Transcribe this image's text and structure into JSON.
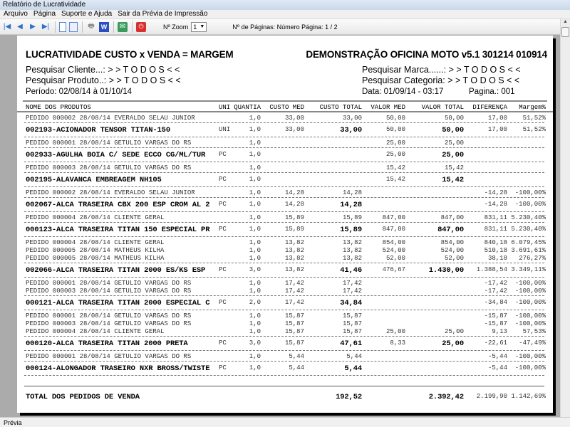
{
  "window": {
    "title": "Relatório de Lucratividade"
  },
  "menu": [
    "Arquivo",
    "Página",
    "Suporte e Ajuda",
    "Sair da Prévia de Impressão"
  ],
  "toolbar": {
    "icons": [
      "first-page-icon",
      "prev-page-icon",
      "next-page-icon",
      "last-page-icon",
      "single-page-icon",
      "two-pages-icon",
      "print-icon",
      "word-export-icon",
      "email-export-icon",
      "exit-icon"
    ],
    "zoom_label": "Nº Zoom",
    "zoom_value": "1",
    "pages_label": "Nº de Páginas: Número Página: 1 / 2"
  },
  "report": {
    "title": "LUCRATIVIDADE CUSTO x VENDA = MARGEM",
    "subtitle": "DEMONSTRAÇÃO OFICINA MOTO v5.1 301214 010914",
    "filter_cliente": "Pesquisar Cliente...: > >  T O D O S  < <",
    "filter_produto": "Pesquisar Produto..: > >  T O D O S  < <",
    "filter_marca": "Pesquisar Marca......: > >  T O D O S  < <",
    "filter_categoria": "Pesquisar Categoria: > >  T O D O S  < <",
    "periodo": "Período: 02/08/14 à 01/10/14",
    "data": "Data: 01/09/14 - 03:17",
    "pagina": "Pagina.: 001",
    "columns": [
      "NOME DOS PRODUTOS",
      "UNI",
      "QUANTIA",
      "CUSTO MED",
      "CUSTO TOTAL",
      "VALOR MED",
      "VALOR TOTAL",
      "DIFERENÇA",
      "Margem%"
    ],
    "groups": [
      {
        "orders": [
          [
            "PEDIDO 000002  28/08/14  EVERALDO SELAU JUNIOR",
            "",
            "1,0",
            "33,00",
            "33,00",
            "50,00",
            "50,00",
            "17,00",
            "51,52%"
          ]
        ],
        "product": [
          "002193-ACIONADOR TENSOR  TITAN-150",
          "UNI",
          "1,0",
          "33,00",
          "33,00",
          "50,00",
          "50,00",
          "17,00",
          "51,52%"
        ]
      },
      {
        "orders": [
          [
            "PEDIDO 000001  28/08/14  GETULIO VARGAS DO RS",
            "",
            "1,0",
            "",
            "",
            "25,00",
            "25,00",
            "",
            ""
          ]
        ],
        "product": [
          "002933-AGULHA BOIA C/ SEDE ECCO CG/ML/TUR",
          "PC",
          "1,0",
          "",
          "",
          "25,00",
          "25,00",
          "",
          ""
        ]
      },
      {
        "orders": [
          [
            "PEDIDO 000003  28/08/14  GETULIO VARGAS DO RS",
            "",
            "1,0",
            "",
            "",
            "15,42",
            "15,42",
            "",
            ""
          ]
        ],
        "product": [
          "002195-ALAVANCA EMBREAGEM NH105",
          "PC",
          "1,0",
          "",
          "",
          "15,42",
          "15,42",
          "",
          ""
        ]
      },
      {
        "orders": [
          [
            "PEDIDO 000002  28/08/14  EVERALDO SELAU JUNIOR",
            "",
            "1,0",
            "14,28",
            "14,28",
            "",
            "",
            "-14,28",
            "-100,00%"
          ]
        ],
        "product": [
          "002067-ALCA TRASEIRA CBX 200 ESP CROM AL 2",
          "PC",
          "1,0",
          "14,28",
          "14,28",
          "",
          "",
          "-14,28",
          "-100,00%"
        ]
      },
      {
        "orders": [
          [
            "PEDIDO 000004  28/08/14  CLIENTE GERAL",
            "",
            "1,0",
            "15,89",
            "15,89",
            "847,00",
            "847,00",
            "831,11",
            "5.230,40%"
          ]
        ],
        "product": [
          "000123-ALCA TRASEIRA TITAN 150 ESPECIAL PR",
          "PC",
          "1,0",
          "15,89",
          "15,89",
          "847,00",
          "847,00",
          "831,11",
          "5.230,40%"
        ]
      },
      {
        "orders": [
          [
            "PEDIDO 000004  28/08/14  CLIENTE GERAL",
            "",
            "1,0",
            "13,82",
            "13,82",
            "854,00",
            "854,00",
            "840,18",
            "6.079,45%"
          ],
          [
            "PEDIDO 000005  28/08/14  MATHEUS  KILHA",
            "",
            "1,0",
            "13,82",
            "13,82",
            "524,00",
            "524,00",
            "510,18",
            "3.691,61%"
          ],
          [
            "PEDIDO 000005  28/08/14  MATHEUS  KILHA",
            "",
            "1,0",
            "13,82",
            "13,82",
            "52,00",
            "52,00",
            "38,18",
            "276,27%"
          ]
        ],
        "product": [
          "002066-ALCA TRASEIRA TITAN 2000 ES/KS ESP",
          "PC",
          "3,0",
          "13,82",
          "41,46",
          "476,67",
          "1.430,00",
          "1.388,54",
          "3.349,11%"
        ]
      },
      {
        "orders": [
          [
            "PEDIDO 000001  28/08/14  GETULIO VARGAS DO RS",
            "",
            "1,0",
            "17,42",
            "17,42",
            "",
            "",
            "-17,42",
            "-100,00%"
          ],
          [
            "PEDIDO 000003  28/08/14  GETULIO VARGAS DO RS",
            "",
            "1,0",
            "17,42",
            "17,42",
            "",
            "",
            "-17,42",
            "-100,00%"
          ]
        ],
        "product": [
          "000121-ALCA TRASEIRA TITAN 2000 ESPECIAL C",
          "PC",
          "2,0",
          "17,42",
          "34,84",
          "",
          "",
          "-34,84",
          "-100,00%"
        ]
      },
      {
        "orders": [
          [
            "PEDIDO 000001  28/08/14  GETULIO VARGAS DO RS",
            "",
            "1,0",
            "15,87",
            "15,87",
            "",
            "",
            "-15,87",
            "-100,00%"
          ],
          [
            "PEDIDO 000003  28/08/14  GETULIO VARGAS DO RS",
            "",
            "1,0",
            "15,87",
            "15,87",
            "",
            "",
            "-15,87",
            "-100,00%"
          ],
          [
            "PEDIDO 000004  28/08/14  CLIENTE GERAL",
            "",
            "1,0",
            "15,87",
            "15,87",
            "25,00",
            "25,00",
            "9,13",
            "57,53%"
          ]
        ],
        "product": [
          "000120-ALCA TRASEIRA TITAN 2000 PRETA",
          "PC",
          "3,0",
          "15,87",
          "47,61",
          "8,33",
          "25,00",
          "-22,61",
          "-47,49%"
        ]
      },
      {
        "orders": [
          [
            "PEDIDO 000001  28/08/14  GETULIO VARGAS DO RS",
            "",
            "1,0",
            "5,44",
            "5,44",
            "",
            "",
            "-5,44",
            "-100,00%"
          ]
        ],
        "product": [
          "000124-ALONGADOR TRASEIRO NXR BROSS/TWISTE",
          "PC",
          "1,0",
          "5,44",
          "5,44",
          "",
          "",
          "-5,44",
          "-100,00%"
        ]
      }
    ],
    "total": [
      "TOTAL DOS PEDIDOS DE VENDA",
      "",
      "",
      "",
      "192,52",
      "",
      "2.392,42",
      "2.199,90",
      "1.142,69%"
    ]
  },
  "status": {
    "text": "Prévia"
  }
}
